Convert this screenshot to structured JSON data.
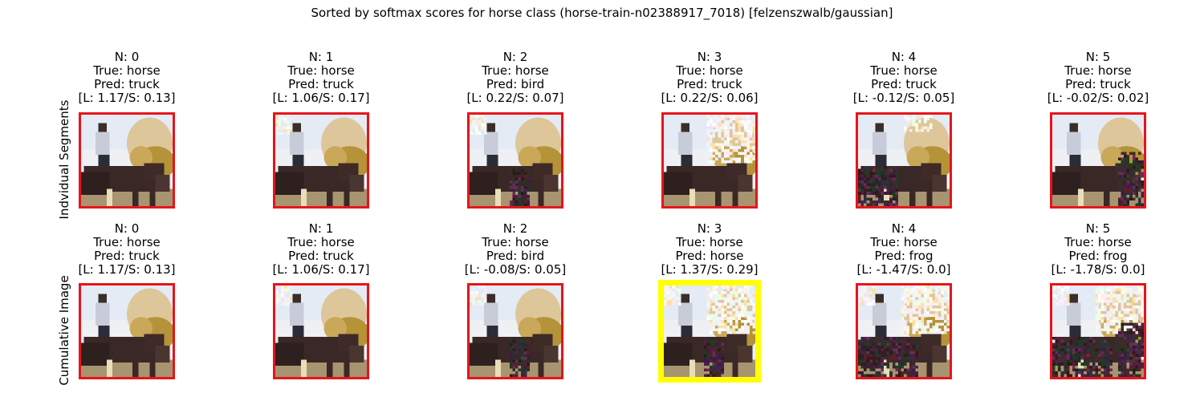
{
  "title": "Sorted by softmax scores for horse class (horse-train-n02388917_7018) [felzenszwalb/gaussian]",
  "colors": {
    "normal_border": "#e8141a",
    "highlight_border": "#ffff00"
  },
  "rows": [
    {
      "label": "Indvidual Segments",
      "panels": [
        {
          "n": "N: 0",
          "true": "True: horse",
          "pred": "Pred: truck",
          "scores": "[L: 1.17/S: 0.13]",
          "highlight": false,
          "noise": 0
        },
        {
          "n": "N: 1",
          "true": "True: horse",
          "pred": "Pred: truck",
          "scores": "[L: 1.06/S: 0.17]",
          "highlight": false,
          "noise": 1
        },
        {
          "n": "N: 2",
          "true": "True: horse",
          "pred": "Pred: bird",
          "scores": "[L: 0.22/S: 0.07]",
          "highlight": false,
          "noise": 2
        },
        {
          "n": "N: 3",
          "true": "True: horse",
          "pred": "Pred: truck",
          "scores": "[L: 0.22/S: 0.06]",
          "highlight": false,
          "noise": 3
        },
        {
          "n": "N: 4",
          "true": "True: horse",
          "pred": "Pred: truck",
          "scores": "[L: -0.12/S: 0.05]",
          "highlight": false,
          "noise": 4
        },
        {
          "n": "N: 5",
          "true": "True: horse",
          "pred": "Pred: truck",
          "scores": "[L: -0.02/S: 0.02]",
          "highlight": false,
          "noise": 5
        }
      ]
    },
    {
      "label": "Cumulative Image",
      "panels": [
        {
          "n": "N: 0",
          "true": "True: horse",
          "pred": "Pred: truck",
          "scores": "[L: 1.17/S: 0.13]",
          "highlight": false,
          "noise": 0
        },
        {
          "n": "N: 1",
          "true": "True: horse",
          "pred": "Pred: truck",
          "scores": "[L: 1.06/S: 0.17]",
          "highlight": false,
          "noise": 1
        },
        {
          "n": "N: 2",
          "true": "True: horse",
          "pred": "Pred: bird",
          "scores": "[L: -0.08/S: 0.05]",
          "highlight": false,
          "noise": 6
        },
        {
          "n": "N: 3",
          "true": "True: horse",
          "pred": "Pred: horse",
          "scores": "[L: 1.37/S: 0.29]",
          "highlight": true,
          "noise": 7
        },
        {
          "n": "N: 4",
          "true": "True: horse",
          "pred": "Pred: frog",
          "scores": "[L: -1.47/S: 0.0]",
          "highlight": false,
          "noise": 8
        },
        {
          "n": "N: 5",
          "true": "True: horse",
          "pred": "Pred: frog",
          "scores": "[L: -1.78/S: 0.0]",
          "highlight": false,
          "noise": 9
        }
      ]
    }
  ]
}
